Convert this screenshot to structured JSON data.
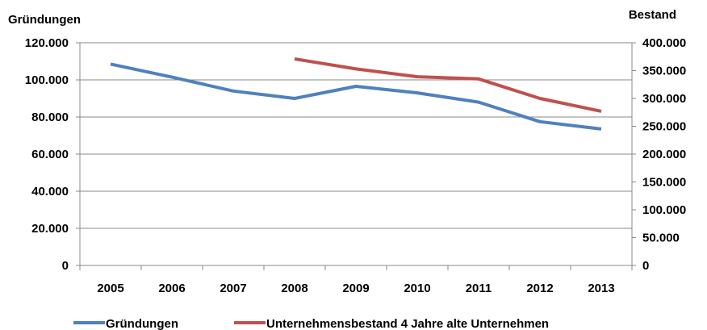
{
  "chart_data": {
    "type": "line",
    "categories": [
      "2005",
      "2006",
      "2007",
      "2008",
      "2009",
      "2010",
      "2011",
      "2012",
      "2013"
    ],
    "y_left": {
      "label": "Gründungen",
      "lim": [
        0,
        120000
      ],
      "ticks": [
        "0",
        "20.000",
        "40.000",
        "60.000",
        "80.000",
        "100.000",
        "120.000"
      ]
    },
    "y_right": {
      "label": "Bestand",
      "lim": [
        0,
        400000
      ],
      "ticks": [
        "0",
        "50.000",
        "100.000",
        "150.000",
        "200.000",
        "250.000",
        "300.000",
        "350.000",
        "400.000"
      ]
    },
    "series": [
      {
        "name": "Gründungen",
        "axis": "left",
        "color": "#4F81BD",
        "values": [
          108500,
          101500,
          94000,
          90000,
          96500,
          93000,
          88000,
          77500,
          73500
        ]
      },
      {
        "name": "Unternehmensbestand 4 Jahre alte Unternehmen",
        "axis": "right",
        "color": "#C0504D",
        "values": [
          null,
          null,
          null,
          371000,
          353000,
          339000,
          335000,
          300000,
          277000
        ]
      }
    ],
    "grid": true,
    "legend": "bottom"
  }
}
